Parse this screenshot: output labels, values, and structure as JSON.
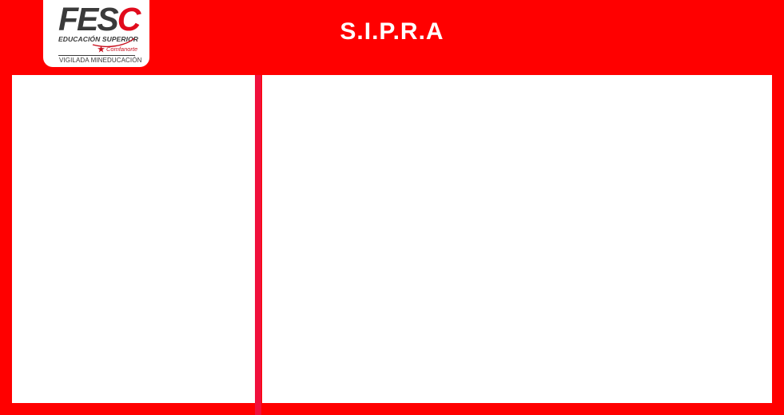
{
  "header": {
    "title": "S.I.P.R.A"
  },
  "logo": {
    "wordmark_main": "FES",
    "wordmark_accent": "C",
    "tagline": "EDUCACIÓN SUPERIOR",
    "partner": "Comfanorte",
    "footer": "VIGILADA MINEDUCACIÓN",
    "icon": "comfanorte-star-icon"
  },
  "panels": {
    "left": "",
    "right": ""
  },
  "colors": {
    "background": "#ff0000",
    "divider": "#f0103c",
    "panel": "#ffffff",
    "logo_dark": "#3a3a3a",
    "logo_red": "#e10b1c"
  }
}
